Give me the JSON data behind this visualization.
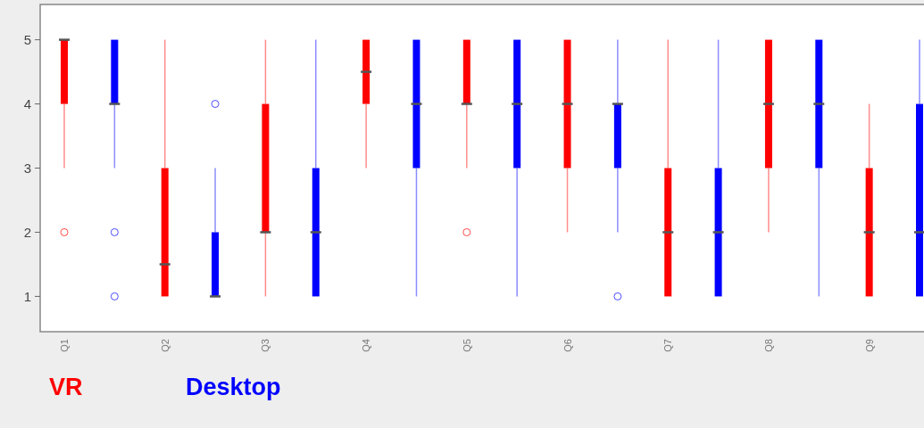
{
  "chart_data": {
    "type": "box",
    "categories": [
      "Q1",
      null,
      "Q2",
      null,
      "Q3",
      null,
      "Q4",
      null,
      "Q5",
      null,
      "Q6",
      null,
      "Q7",
      null,
      "Q8",
      null,
      "Q9",
      null
    ],
    "ylim": [
      0.45,
      5.55
    ],
    "yticks": [
      1,
      2,
      3,
      4,
      5
    ],
    "grid": false,
    "legend": "bottom",
    "series": [
      {
        "name": "VR",
        "color": "#ff0000",
        "boxes": [
          {
            "low": 3,
            "q1": 4,
            "median": 5,
            "q3": 5,
            "high": 5,
            "outliers": [
              2
            ]
          },
          null,
          {
            "low": 1,
            "q1": 1,
            "median": 1.5,
            "q3": 3,
            "high": 5
          },
          null,
          {
            "low": 1,
            "q1": 2,
            "median": 2,
            "q3": 4,
            "high": 5
          },
          null,
          {
            "low": 3,
            "q1": 4,
            "median": 4.5,
            "q3": 5,
            "high": 5
          },
          null,
          {
            "low": 3,
            "q1": 4,
            "median": 4,
            "q3": 5,
            "high": 5,
            "outliers": [
              2
            ]
          },
          null,
          {
            "low": 2,
            "q1": 3,
            "median": 4,
            "q3": 5,
            "high": 5
          },
          null,
          {
            "low": 1,
            "q1": 1,
            "median": 2,
            "q3": 3,
            "high": 5
          },
          null,
          {
            "low": 2,
            "q1": 3,
            "median": 4,
            "q3": 5,
            "high": 5
          },
          null,
          {
            "low": 1,
            "q1": 1,
            "median": 2,
            "q3": 3,
            "high": 4
          },
          null
        ]
      },
      {
        "name": "Desktop",
        "color": "#0000ff",
        "boxes": [
          null,
          {
            "low": 3,
            "q1": 4,
            "median": 4,
            "q3": 5,
            "high": 5,
            "outliers": [
              2,
              1
            ]
          },
          null,
          {
            "low": 1,
            "q1": 1,
            "median": 1,
            "q3": 2,
            "high": 3,
            "outliers": [
              4
            ]
          },
          null,
          {
            "low": 1,
            "q1": 1,
            "median": 2,
            "q3": 3,
            "high": 5
          },
          null,
          {
            "low": 1,
            "q1": 3,
            "median": 4,
            "q3": 5,
            "high": 5
          },
          null,
          {
            "low": 1,
            "q1": 3,
            "median": 4,
            "q3": 5,
            "high": 5
          },
          null,
          {
            "low": 2,
            "q1": 3,
            "median": 4,
            "q3": 4,
            "high": 5,
            "outliers": [
              1
            ]
          },
          null,
          {
            "low": 1,
            "q1": 1,
            "median": 2,
            "q3": 3,
            "high": 5
          },
          null,
          {
            "low": 1,
            "q1": 3,
            "median": 4,
            "q3": 5,
            "high": 5
          },
          null,
          {
            "low": 1,
            "q1": 1,
            "median": 2,
            "q3": 4,
            "high": 5
          }
        ]
      }
    ]
  }
}
